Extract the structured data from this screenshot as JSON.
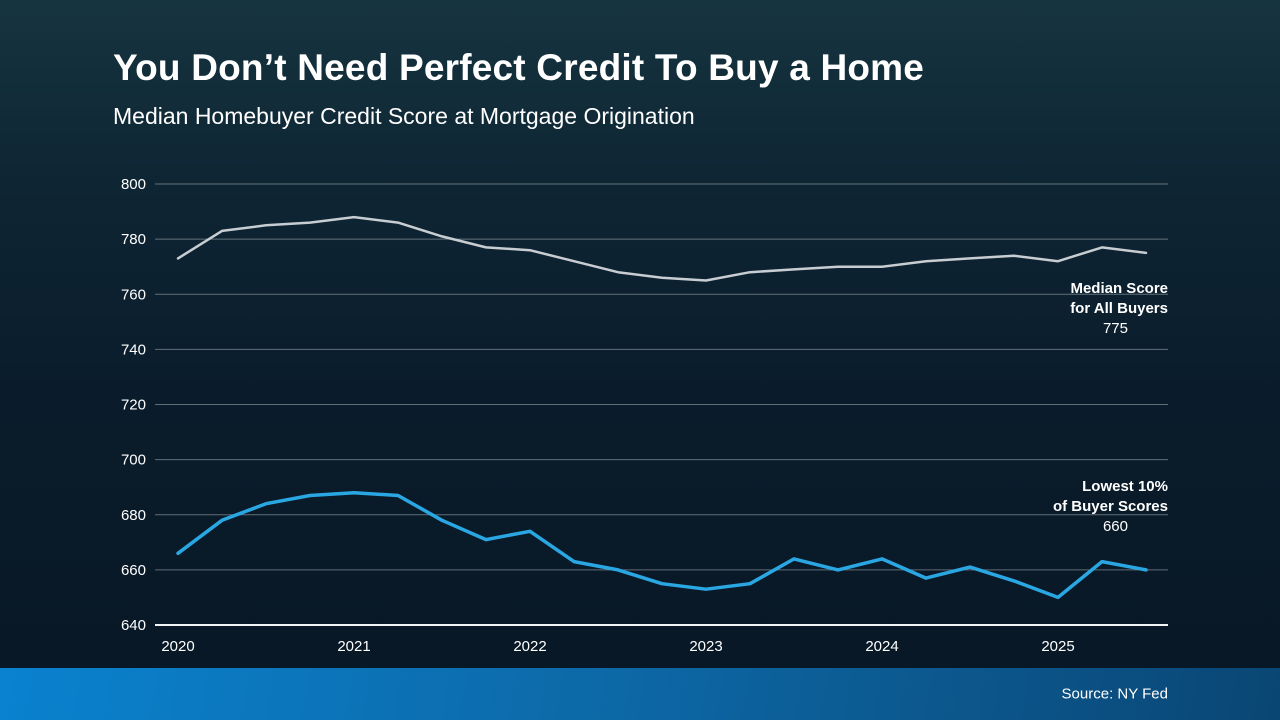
{
  "slide": {
    "title": "You Don’t Need Perfect Credit To Buy a Home",
    "subtitle": "Median Homebuyer Credit Score at Mortgage Origination",
    "source": "Source: NY Fed"
  },
  "annotations": {
    "all_buyers": {
      "line1": "Median Score",
      "line2": "for All Buyers",
      "value": "775"
    },
    "lowest_10": {
      "line1": "Lowest 10%",
      "line2": "of Buyer Scores",
      "value": "660"
    }
  },
  "colors": {
    "all_buyers_line": "#c8cdd2",
    "lowest_10_line": "#2aa7e3",
    "gridline": "rgba(170,178,183,0.55)",
    "axis_line": "#f2f4f5",
    "text": "#ffffff"
  },
  "chart_data": {
    "type": "line",
    "title": "Median Homebuyer Credit Score at Mortgage Origination",
    "xlabel": "",
    "ylabel": "",
    "ylim": [
      640,
      800
    ],
    "y_tick_step": 20,
    "grid": true,
    "legend_position": "annotated-right",
    "year_labels": [
      "2020",
      "2021",
      "2022",
      "2023",
      "2024",
      "2025"
    ],
    "x": [
      "2020 Q1",
      "2020 Q2",
      "2020 Q3",
      "2020 Q4",
      "2021 Q1",
      "2021 Q2",
      "2021 Q3",
      "2021 Q4",
      "2022 Q1",
      "2022 Q2",
      "2022 Q3",
      "2022 Q4",
      "2023 Q1",
      "2023 Q2",
      "2023 Q3",
      "2023 Q4",
      "2024 Q1",
      "2024 Q2",
      "2024 Q3",
      "2024 Q4",
      "2025 Q1",
      "2025 Q2",
      "2025 Q3"
    ],
    "series": [
      {
        "name": "Median Score for All Buyers",
        "color": "#c8cdd2",
        "end_label": "775",
        "values": [
          773,
          783,
          785,
          786,
          788,
          786,
          781,
          777,
          776,
          772,
          768,
          766,
          765,
          768,
          769,
          770,
          770,
          772,
          773,
          774,
          772,
          777,
          775
        ]
      },
      {
        "name": "Lowest 10% of Buyer Scores",
        "color": "#2aa7e3",
        "end_label": "660",
        "values": [
          666,
          678,
          684,
          687,
          688,
          687,
          678,
          671,
          674,
          663,
          660,
          655,
          653,
          655,
          664,
          660,
          664,
          657,
          661,
          656,
          650,
          663,
          660
        ]
      }
    ]
  }
}
